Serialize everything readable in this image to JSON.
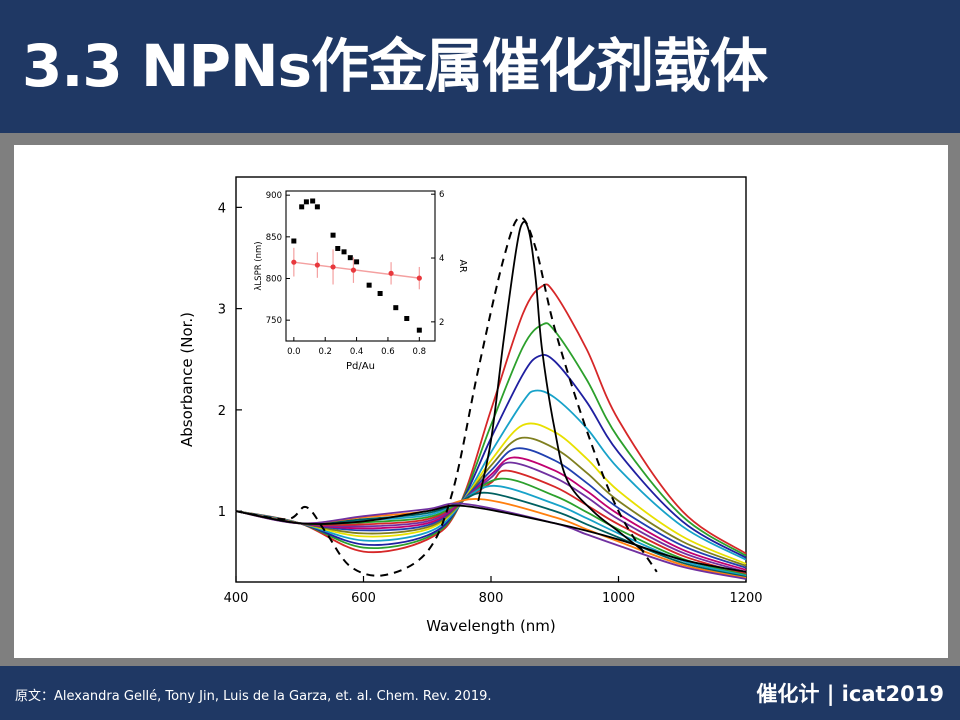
{
  "slide": {
    "title": "3.3 NPNs作金属催化剂载体",
    "citation": "原文：Alexandra Gellé, Tony Jin, Luis de la Garza, et. al.  Chem. Rev. 2019.",
    "brand": "催化计 | icat2019"
  },
  "chart_data": [
    {
      "type": "line",
      "title": "",
      "xlabel": "Wavelength (nm)",
      "ylabel": "Absorbance (Nor.)",
      "xlim": [
        400,
        1200
      ],
      "ylim": [
        0.3,
        4.3
      ],
      "x_ticks": [
        400,
        600,
        800,
        1000,
        1200
      ],
      "y_ticks": [
        1,
        2,
        3,
        4
      ],
      "grid": false,
      "legend": "none",
      "series": [
        {
          "color": "#d62728",
          "style": "solid",
          "peak": [
            880,
            3.22
          ],
          "dip": [
            635,
            0.5
          ],
          "x": [
            400,
            500,
            600,
            700,
            750,
            800,
            850,
            880,
            900,
            950,
            1000,
            1100,
            1200
          ],
          "y": [
            1.0,
            0.88,
            0.6,
            0.72,
            1.05,
            2.0,
            2.95,
            3.22,
            3.15,
            2.6,
            1.9,
            1.0,
            0.58
          ]
        },
        {
          "color": "#2ca02c",
          "style": "solid",
          "peak": [
            880,
            2.84
          ],
          "dip": [
            635,
            0.54
          ],
          "x": [
            400,
            500,
            600,
            700,
            750,
            800,
            850,
            880,
            900,
            950,
            1000,
            1100,
            1200
          ],
          "y": [
            1.0,
            0.88,
            0.64,
            0.74,
            1.05,
            1.85,
            2.62,
            2.84,
            2.78,
            2.3,
            1.72,
            0.95,
            0.56
          ]
        },
        {
          "color": "#1f1fa0",
          "style": "solid",
          "peak": [
            875,
            2.53
          ],
          "dip": [
            640,
            0.58
          ],
          "x": [
            400,
            500,
            600,
            700,
            750,
            800,
            850,
            875,
            900,
            950,
            1000,
            1100,
            1200
          ],
          "y": [
            1.0,
            0.88,
            0.67,
            0.76,
            1.05,
            1.72,
            2.35,
            2.53,
            2.48,
            2.08,
            1.58,
            0.9,
            0.54
          ]
        },
        {
          "color": "#17a2c9",
          "style": "solid",
          "peak": [
            870,
            2.19
          ],
          "dip": [
            640,
            0.63
          ],
          "x": [
            400,
            500,
            600,
            700,
            750,
            800,
            850,
            870,
            900,
            950,
            1000,
            1100,
            1200
          ],
          "y": [
            1.0,
            0.88,
            0.71,
            0.79,
            1.05,
            1.58,
            2.08,
            2.19,
            2.12,
            1.82,
            1.42,
            0.85,
            0.52
          ]
        },
        {
          "color": "#e8e000",
          "style": "solid",
          "peak": [
            850,
            1.85
          ],
          "dip": [
            640,
            0.68
          ],
          "x": [
            400,
            500,
            600,
            700,
            750,
            800,
            850,
            900,
            950,
            1000,
            1100,
            1200
          ],
          "y": [
            1.0,
            0.88,
            0.75,
            0.82,
            1.06,
            1.5,
            1.85,
            1.78,
            1.52,
            1.2,
            0.75,
            0.48
          ]
        },
        {
          "color": "#7f7f1f",
          "style": "solid",
          "peak": [
            845,
            1.72
          ],
          "dip": [
            640,
            0.72
          ],
          "x": [
            400,
            500,
            600,
            700,
            750,
            800,
            845,
            900,
            950,
            1000,
            1100,
            1200
          ],
          "y": [
            1.0,
            0.88,
            0.78,
            0.84,
            1.06,
            1.45,
            1.72,
            1.62,
            1.38,
            1.1,
            0.7,
            0.46
          ]
        },
        {
          "color": "#2040b0",
          "style": "solid",
          "peak": [
            840,
            1.62
          ],
          "dip": [
            640,
            0.76
          ],
          "x": [
            400,
            500,
            600,
            700,
            750,
            800,
            840,
            900,
            950,
            1000,
            1100,
            1200
          ],
          "y": [
            1.0,
            0.88,
            0.81,
            0.86,
            1.07,
            1.4,
            1.62,
            1.5,
            1.28,
            1.03,
            0.66,
            0.44
          ]
        },
        {
          "color": "#c00070",
          "style": "solid",
          "peak": [
            835,
            1.53
          ],
          "dip": [
            640,
            0.79
          ],
          "x": [
            400,
            500,
            600,
            700,
            750,
            800,
            835,
            900,
            950,
            1000,
            1100,
            1200
          ],
          "y": [
            1.0,
            0.88,
            0.83,
            0.88,
            1.07,
            1.36,
            1.53,
            1.4,
            1.2,
            0.97,
            0.62,
            0.42
          ]
        },
        {
          "color": "#7030a0",
          "style": "solid",
          "peak": [
            830,
            1.48
          ],
          "dip": [
            640,
            0.82
          ],
          "x": [
            400,
            500,
            600,
            700,
            750,
            800,
            830,
            900,
            950,
            1000,
            1100,
            1200
          ],
          "y": [
            1.0,
            0.88,
            0.85,
            0.9,
            1.08,
            1.33,
            1.48,
            1.33,
            1.14,
            0.92,
            0.59,
            0.4
          ]
        },
        {
          "color": "#d62728",
          "style": "solid",
          "peak": [
            825,
            1.4
          ],
          "dip": [
            640,
            0.85
          ],
          "x": [
            400,
            500,
            600,
            700,
            750,
            800,
            825,
            900,
            950,
            1000,
            1100,
            1200
          ],
          "y": [
            1.0,
            0.88,
            0.87,
            0.92,
            1.08,
            1.28,
            1.4,
            1.24,
            1.06,
            0.87,
            0.56,
            0.38
          ]
        },
        {
          "color": "#2ca02c",
          "style": "solid",
          "peak": [
            815,
            1.32
          ],
          "dip": [
            640,
            0.88
          ],
          "x": [
            400,
            500,
            600,
            700,
            750,
            815,
            900,
            950,
            1000,
            1100,
            1200
          ],
          "y": [
            1.0,
            0.88,
            0.89,
            0.94,
            1.08,
            1.32,
            1.15,
            0.99,
            0.82,
            0.53,
            0.37
          ]
        },
        {
          "color": "#17a2c9",
          "style": "solid",
          "peak": [
            805,
            1.25
          ],
          "dip": [
            640,
            0.9
          ],
          "x": [
            400,
            500,
            600,
            700,
            750,
            805,
            900,
            950,
            1000,
            1100,
            1200
          ],
          "y": [
            1.0,
            0.88,
            0.91,
            0.96,
            1.09,
            1.25,
            1.07,
            0.93,
            0.78,
            0.51,
            0.36
          ]
        },
        {
          "color": "#006060",
          "style": "solid",
          "peak": [
            795,
            1.18
          ],
          "dip": [
            640,
            0.92
          ],
          "x": [
            400,
            500,
            600,
            700,
            750,
            795,
            900,
            950,
            1000,
            1100,
            1200
          ],
          "y": [
            1.0,
            0.88,
            0.92,
            0.98,
            1.09,
            1.18,
            1.0,
            0.87,
            0.74,
            0.49,
            0.35
          ]
        },
        {
          "color": "#ff7f0e",
          "style": "solid",
          "peak": [
            780,
            1.12
          ],
          "dip": [
            640,
            0.94
          ],
          "x": [
            400,
            500,
            600,
            700,
            780,
            900,
            950,
            1000,
            1100,
            1200
          ],
          "y": [
            1.0,
            0.88,
            0.94,
            1.0,
            1.12,
            0.94,
            0.82,
            0.7,
            0.47,
            0.34
          ]
        },
        {
          "color": "#7030a0",
          "style": "solid",
          "peak": [
            760,
            1.07
          ],
          "dip": [
            620,
            0.95
          ],
          "x": [
            400,
            500,
            600,
            700,
            760,
            900,
            950,
            1000,
            1100,
            1200
          ],
          "y": [
            1.0,
            0.88,
            0.95,
            1.02,
            1.07,
            0.88,
            0.77,
            0.66,
            0.45,
            0.33
          ]
        },
        {
          "color": "#000000",
          "style": "solid",
          "peak": [
            760,
            1.05
          ],
          "dip": [
            560,
            0.86
          ],
          "x": [
            400,
            500,
            600,
            700,
            760,
            900,
            1000,
            1100,
            1200
          ],
          "y": [
            1.0,
            0.88,
            0.9,
            1.0,
            1.05,
            0.88,
            0.72,
            0.52,
            0.4
          ]
        },
        {
          "color": "#000000",
          "style": "dashed",
          "peak": [
            845,
            3.9
          ],
          "dip": [
            635,
            0.37
          ],
          "x": [
            400,
            480,
            510,
            540,
            580,
            635,
            700,
            740,
            780,
            820,
            845,
            870,
            900,
            950,
            1000,
            1060
          ],
          "y": [
            1.0,
            0.92,
            1.04,
            0.8,
            0.45,
            0.37,
            0.6,
            1.2,
            2.4,
            3.5,
            3.9,
            3.6,
            2.8,
            1.8,
            1.0,
            0.4
          ]
        },
        {
          "color": "#000000",
          "style": "solid",
          "note": "peak-trace",
          "x": [
            780,
            800,
            820,
            840,
            850,
            860,
            870,
            880,
            900,
            920,
            960,
            1000,
            1040
          ],
          "y": [
            1.1,
            1.7,
            2.7,
            3.6,
            3.85,
            3.75,
            3.3,
            2.6,
            1.8,
            1.3,
            1.0,
            0.8,
            0.6
          ]
        }
      ]
    },
    {
      "type": "scatter",
      "title": "",
      "xlabel": "Pd/Au",
      "ylabel": "λLSPR (nm)",
      "y2label": "AR",
      "xlim": [
        -0.05,
        0.9
      ],
      "ylim": [
        725,
        905
      ],
      "y2lim": [
        1.4,
        6.1
      ],
      "x_ticks": [
        "0.0",
        "0.2",
        "0.4",
        "0.6",
        "0.8"
      ],
      "y_ticks": [
        "750",
        "800",
        "850",
        "900"
      ],
      "y2_ticks": [
        "2",
        "4",
        "6"
      ],
      "series": [
        {
          "color": "#000000",
          "marker": "square",
          "x": [
            0.0,
            0.05,
            0.08,
            0.12,
            0.15,
            0.25,
            0.28,
            0.32,
            0.36,
            0.4,
            0.48,
            0.55,
            0.65,
            0.72,
            0.8
          ],
          "y": [
            845,
            886,
            892,
            893,
            886,
            852,
            836,
            832,
            825,
            820,
            792,
            782,
            765,
            752,
            738
          ]
        },
        {
          "color": "#e8383d",
          "marker": "circle",
          "fit_color": "#f4a0a0",
          "x": [
            0.0,
            0.15,
            0.25,
            0.38,
            0.62,
            0.8
          ],
          "y": [
            3.87,
            3.78,
            3.72,
            3.62,
            3.52,
            3.37
          ],
          "err": [
            0.45,
            0.4,
            0.55,
            0.4,
            0.35,
            0.35
          ]
        }
      ]
    }
  ]
}
